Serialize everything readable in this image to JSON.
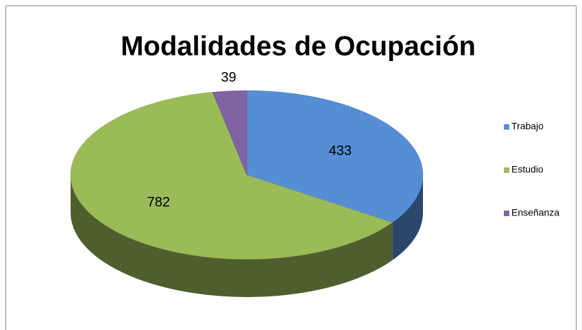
{
  "chart_data": {
    "type": "pie3d",
    "title": "Modalidades de Ocupación",
    "categories": [
      "Trabajo",
      "Estudio",
      "Enseñanza"
    ],
    "values": [
      433,
      782,
      39
    ],
    "colors": [
      "#558ed5",
      "#9bbb59",
      "#8064a2"
    ],
    "legend": "right"
  }
}
